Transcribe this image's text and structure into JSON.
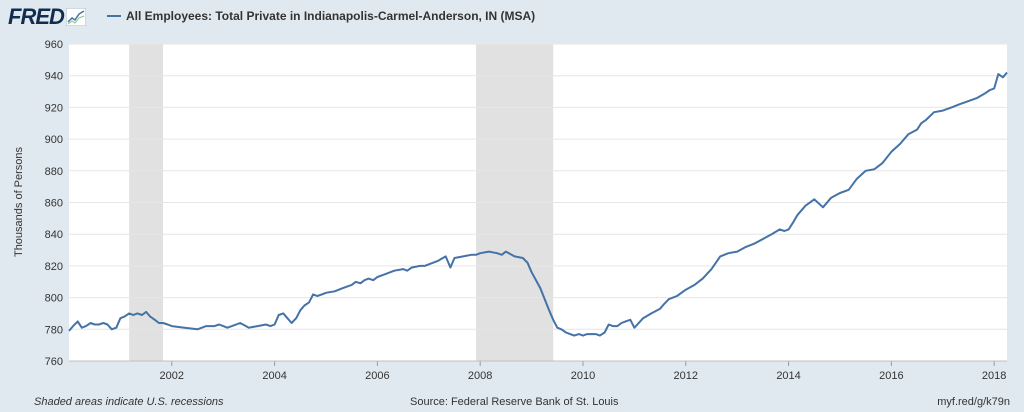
{
  "header": {
    "logo_text": "FRED",
    "series_label": "All Employees: Total Private in Indianapolis-Carmel-Anderson, IN (MSA)"
  },
  "footer": {
    "left": "Shaded areas indicate U.S. recessions",
    "center": "Source: Federal Reserve Bank of St. Louis",
    "right": "myf.red/g/k79n"
  },
  "colors": {
    "series": "#4572a7",
    "recession": "#e1e1e1",
    "background": "#e1e9f0",
    "plot": "#ffffff"
  },
  "chart_data": {
    "type": "line",
    "title": "",
    "xlabel": "",
    "ylabel": "Thousands of Persons",
    "ylim": [
      760,
      960
    ],
    "yticks": [
      760,
      780,
      800,
      820,
      840,
      860,
      880,
      900,
      920,
      940,
      960
    ],
    "xlim": [
      2000.0,
      2018.25
    ],
    "xticks": [
      2002,
      2004,
      2006,
      2008,
      2010,
      2012,
      2014,
      2016,
      2018
    ],
    "grid": true,
    "legend": "top-left",
    "recessions": [
      [
        2001.17,
        2001.83
      ],
      [
        2007.92,
        2009.42
      ]
    ],
    "series": [
      {
        "name": "All Employees: Total Private in Indianapolis-Carmel-Anderson, IN (MSA)",
        "x": [
          2000.0,
          2000.08,
          2000.17,
          2000.25,
          2000.33,
          2000.42,
          2000.5,
          2000.58,
          2000.67,
          2000.75,
          2000.83,
          2000.92,
          2001.0,
          2001.08,
          2001.17,
          2001.25,
          2001.33,
          2001.42,
          2001.5,
          2001.58,
          2001.67,
          2001.75,
          2001.83,
          2001.92,
          2002.0,
          2002.25,
          2002.5,
          2002.67,
          2002.83,
          2002.92,
          2003.0,
          2003.08,
          2003.17,
          2003.33,
          2003.5,
          2003.67,
          2003.83,
          2003.92,
          2004.0,
          2004.08,
          2004.17,
          2004.25,
          2004.33,
          2004.42,
          2004.5,
          2004.58,
          2004.67,
          2004.75,
          2004.83,
          2004.92,
          2005.0,
          2005.17,
          2005.33,
          2005.5,
          2005.58,
          2005.67,
          2005.75,
          2005.83,
          2005.92,
          2006.0,
          2006.17,
          2006.33,
          2006.5,
          2006.58,
          2006.67,
          2006.83,
          2006.92,
          2007.0,
          2007.17,
          2007.33,
          2007.42,
          2007.5,
          2007.67,
          2007.83,
          2007.92,
          2008.0,
          2008.17,
          2008.33,
          2008.42,
          2008.5,
          2008.67,
          2008.83,
          2008.92,
          2009.0,
          2009.17,
          2009.33,
          2009.42,
          2009.5,
          2009.58,
          2009.67,
          2009.75,
          2009.83,
          2009.92,
          2010.0,
          2010.08,
          2010.17,
          2010.25,
          2010.33,
          2010.42,
          2010.5,
          2010.58,
          2010.67,
          2010.75,
          2010.83,
          2010.92,
          2011.0,
          2011.17,
          2011.33,
          2011.5,
          2011.58,
          2011.67,
          2011.83,
          2012.0,
          2012.17,
          2012.33,
          2012.5,
          2012.67,
          2012.83,
          2013.0,
          2013.17,
          2013.33,
          2013.5,
          2013.67,
          2013.83,
          2013.92,
          2014.0,
          2014.08,
          2014.17,
          2014.33,
          2014.5,
          2014.67,
          2014.83,
          2015.0,
          2015.17,
          2015.33,
          2015.5,
          2015.67,
          2015.83,
          2016.0,
          2016.17,
          2016.33,
          2016.5,
          2016.58,
          2016.67,
          2016.83,
          2017.0,
          2017.17,
          2017.33,
          2017.5,
          2017.67,
          2017.83,
          2017.92,
          2018.0,
          2018.08,
          2018.17,
          2018.25
        ],
        "values": [
          779,
          782,
          785,
          781,
          782,
          784,
          783,
          783,
          784,
          783,
          780,
          781,
          787,
          788,
          790,
          789,
          790,
          789,
          791,
          788,
          786,
          784,
          784,
          783,
          782,
          781,
          780,
          782,
          782,
          783,
          782,
          781,
          782,
          784,
          781,
          782,
          783,
          782,
          783,
          789,
          790,
          787,
          784,
          787,
          792,
          795,
          797,
          802,
          801,
          802,
          803,
          804,
          806,
          808,
          810,
          809,
          811,
          812,
          811,
          813,
          815,
          817,
          818,
          817,
          819,
          820,
          820,
          821,
          823,
          826,
          819,
          825,
          826,
          827,
          827,
          828,
          829,
          828,
          827,
          829,
          826,
          825,
          822,
          816,
          806,
          793,
          786,
          781,
          780,
          778,
          777,
          776,
          777,
          776,
          777,
          777,
          777,
          776,
          778,
          783,
          782,
          782,
          784,
          785,
          786,
          781,
          787,
          790,
          793,
          796,
          799,
          801,
          805,
          808,
          812,
          818,
          826,
          828,
          829,
          832,
          834,
          837,
          840,
          843,
          842,
          843,
          847,
          852,
          858,
          862,
          857,
          863,
          866,
          868,
          875,
          880,
          881,
          885,
          892,
          897,
          903,
          906,
          910,
          912,
          917,
          918,
          920,
          922,
          924,
          926,
          929,
          931,
          932,
          941,
          939,
          942
        ]
      }
    ]
  }
}
